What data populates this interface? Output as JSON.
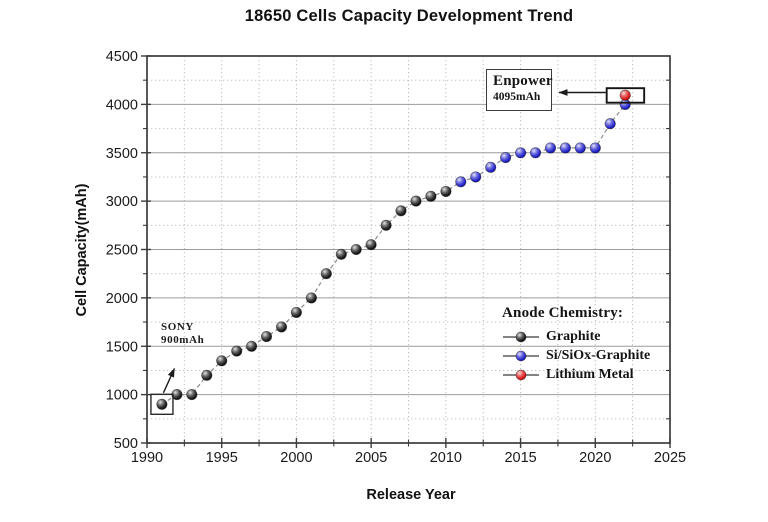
{
  "chart_data": {
    "type": "scatter",
    "title": "18650 Cells Capacity Development Trend",
    "xlabel": "Release Year",
    "ylabel": "Cell Capacity(mAh)",
    "xlim": [
      1990,
      2025
    ],
    "ylim": [
      500,
      4500
    ],
    "x_ticks": [
      1990,
      1995,
      2000,
      2005,
      2010,
      2015,
      2020,
      2025
    ],
    "y_ticks": [
      500,
      1000,
      1500,
      2000,
      2500,
      3000,
      3500,
      4000,
      4500
    ],
    "x_minor_step": 2.5,
    "y_minor_step": 250,
    "grid": {
      "horizontal_major": "solid",
      "horizontal_minor": "dotted",
      "vertical": "dotted"
    },
    "connector_line": "dashed-gray",
    "series": [
      {
        "name": "Graphite",
        "color": "#1a1a1a",
        "connected": true,
        "points": [
          [
            1991,
            900
          ],
          [
            1992,
            1000
          ],
          [
            1993,
            1000
          ],
          [
            1994,
            1200
          ],
          [
            1995,
            1350
          ],
          [
            1996,
            1450
          ],
          [
            1997,
            1500
          ],
          [
            1998,
            1600
          ],
          [
            1999,
            1700
          ],
          [
            2000,
            1850
          ],
          [
            2001,
            2000
          ],
          [
            2002,
            2250
          ],
          [
            2003,
            2450
          ],
          [
            2004,
            2500
          ],
          [
            2005,
            2550
          ],
          [
            2006,
            2750
          ],
          [
            2007,
            2900
          ],
          [
            2008,
            3000
          ],
          [
            2009,
            3050
          ],
          [
            2010,
            3100
          ]
        ]
      },
      {
        "name": "Si/SiOx-Graphite",
        "color": "#2222cc",
        "connected": true,
        "points": [
          [
            2011,
            3200
          ],
          [
            2012,
            3250
          ],
          [
            2013,
            3350
          ],
          [
            2014,
            3450
          ],
          [
            2015,
            3500
          ],
          [
            2016,
            3500
          ],
          [
            2017,
            3550
          ],
          [
            2018,
            3550
          ],
          [
            2019,
            3550
          ],
          [
            2020,
            3550
          ],
          [
            2021,
            3800
          ],
          [
            2022,
            4000
          ]
        ]
      },
      {
        "name": "Lithium Metal",
        "color": "#dd1515",
        "connected": false,
        "points": [
          [
            2022,
            4095
          ]
        ]
      }
    ],
    "legend": {
      "title": "Anode Chemistry:",
      "position": "inside-lower-right",
      "entries": [
        {
          "label": "Graphite",
          "color": "#1a1a1a"
        },
        {
          "label": "Si/SiOx-Graphite",
          "color": "#2222cc"
        },
        {
          "label": "Lithium Metal",
          "color": "#dd1515"
        }
      ]
    },
    "annotations": [
      {
        "id": "sony",
        "lines": [
          "SONY",
          "900mAh"
        ],
        "points_to": {
          "x": 1991,
          "y": 900
        },
        "point_boxed": true
      },
      {
        "id": "enpower",
        "lines": [
          "Enpower",
          "4095mAh"
        ],
        "points_to": {
          "x": 2022,
          "y": 4095
        },
        "point_boxed": true,
        "text_boxed": true
      }
    ]
  }
}
